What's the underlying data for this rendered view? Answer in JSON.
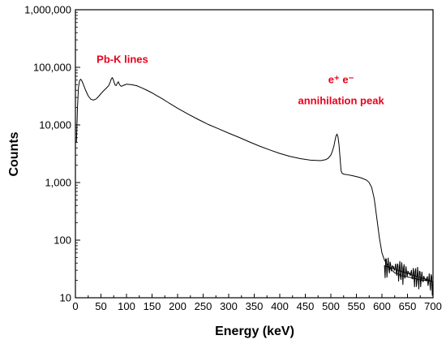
{
  "chart_data": {
    "type": "line",
    "title": "",
    "xlabel": "Energy (keV)",
    "ylabel": "Counts",
    "xlim": [
      0,
      700
    ],
    "ylim": [
      10,
      1000000
    ],
    "yscale": "log",
    "grid": false,
    "x_ticks": [
      0,
      50,
      100,
      150,
      200,
      250,
      300,
      350,
      400,
      450,
      500,
      550,
      600,
      650,
      700
    ],
    "x_tick_labels": [
      "0",
      "50",
      "100",
      "150",
      "200",
      "250",
      "300",
      "350",
      "400",
      "450",
      "500",
      "550",
      "600",
      "650",
      "700"
    ],
    "y_ticks": [
      10,
      100,
      1000,
      10000,
      100000,
      1000000
    ],
    "y_tick_labels": [
      "10",
      "100",
      "1,000",
      "10,000",
      "100,000",
      "1,000,000"
    ],
    "annotation_color": "#e8001c",
    "line_color": "#000000",
    "annotations": [
      {
        "text": "Pb-K lines",
        "x": 92,
        "y": 120000
      },
      {
        "text": "e⁺ e⁻",
        "x": 520,
        "y": 53000
      },
      {
        "text": "annihilation peak",
        "x": 520,
        "y": 23000
      }
    ],
    "series": [
      {
        "x": [
          2,
          4,
          6,
          8,
          10,
          12,
          15,
          20,
          25,
          30,
          35,
          40,
          45,
          50,
          55,
          60,
          65,
          68,
          70,
          72,
          74,
          76,
          78,
          80,
          82,
          84,
          86,
          88,
          90,
          95,
          100,
          110,
          120,
          130,
          140,
          150,
          160,
          170,
          180,
          200,
          220,
          240,
          260,
          280,
          300,
          320,
          340,
          360,
          380,
          400,
          420,
          440,
          460,
          480,
          490,
          495,
          500,
          503,
          506,
          508,
          510,
          512,
          514,
          516,
          518,
          520,
          522,
          525,
          530,
          540,
          550,
          560,
          570,
          575,
          580,
          585,
          590,
          595,
          600,
          605,
          610,
          615,
          620,
          625,
          630,
          640,
          650,
          660,
          670,
          680,
          690,
          700
        ],
        "y": [
          5000,
          20000,
          45000,
          58000,
          62000,
          60000,
          52000,
          40000,
          32000,
          28000,
          27000,
          28000,
          31000,
          35000,
          39000,
          43000,
          48000,
          55000,
          62000,
          66000,
          62000,
          54000,
          49000,
          48500,
          53000,
          56000,
          51000,
          48000,
          47000,
          49000,
          51000,
          50000,
          48000,
          44000,
          40000,
          36000,
          32000,
          28500,
          25000,
          19500,
          15500,
          12500,
          10200,
          8600,
          7200,
          6100,
          5100,
          4300,
          3700,
          3200,
          2850,
          2600,
          2450,
          2400,
          2500,
          2650,
          3000,
          3500,
          4300,
          5300,
          6400,
          6900,
          6200,
          4500,
          2700,
          1600,
          1450,
          1400,
          1380,
          1330,
          1270,
          1200,
          1100,
          1000,
          820,
          520,
          240,
          110,
          60,
          45,
          38,
          33,
          30,
          27,
          26,
          24,
          23,
          22,
          21,
          20,
          20,
          19
        ]
      }
    ]
  }
}
